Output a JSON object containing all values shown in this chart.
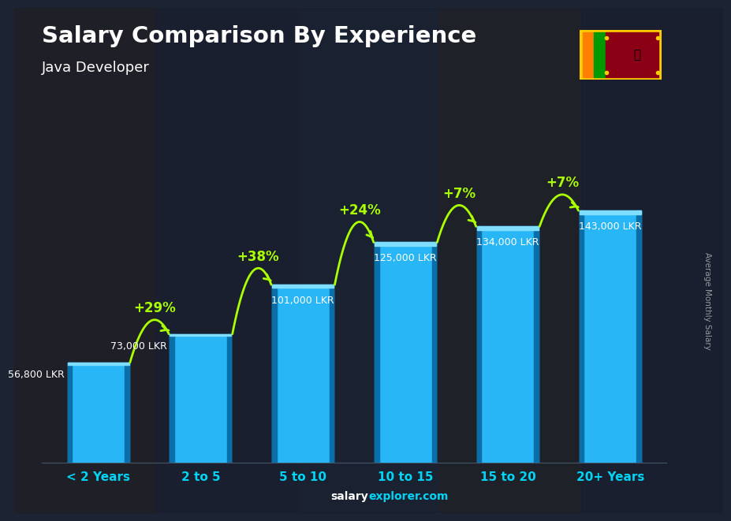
{
  "title": "Salary Comparison By Experience",
  "subtitle": "Java Developer",
  "watermark": "Average Monthly Salary",
  "categories": [
    "< 2 Years",
    "2 to 5",
    "5 to 10",
    "10 to 15",
    "15 to 20",
    "20+ Years"
  ],
  "values": [
    56800,
    73000,
    101000,
    125000,
    134000,
    143000
  ],
  "labels": [
    "56,800 LKR",
    "73,000 LKR",
    "101,000 LKR",
    "125,000 LKR",
    "134,000 LKR",
    "143,000 LKR"
  ],
  "pct_changes": [
    "+29%",
    "+38%",
    "+24%",
    "+7%",
    "+7%"
  ],
  "bar_face_color": "#29b6f6",
  "bar_left_color": "#0a6ea8",
  "bar_right_color": "#0a6ea8",
  "bar_top_color": "#7fdeff",
  "bg_color": "#1c2333",
  "title_color": "#ffffff",
  "subtitle_color": "#ffffff",
  "label_color": "#ffffff",
  "pct_color": "#aaff00",
  "arrow_color": "#aaff00",
  "xticklabel_color": "#00d4f5",
  "footer_salary_color": "#00d4f5",
  "footer_rest_color": "#00d4f5",
  "watermark_color": "#cccccc",
  "ylim": [
    0,
    195000
  ],
  "bar_width": 0.6,
  "flag_colors": {
    "border": "#ffcc00",
    "orange": "#ff8000",
    "green": "#009900",
    "maroon": "#8b0015"
  }
}
